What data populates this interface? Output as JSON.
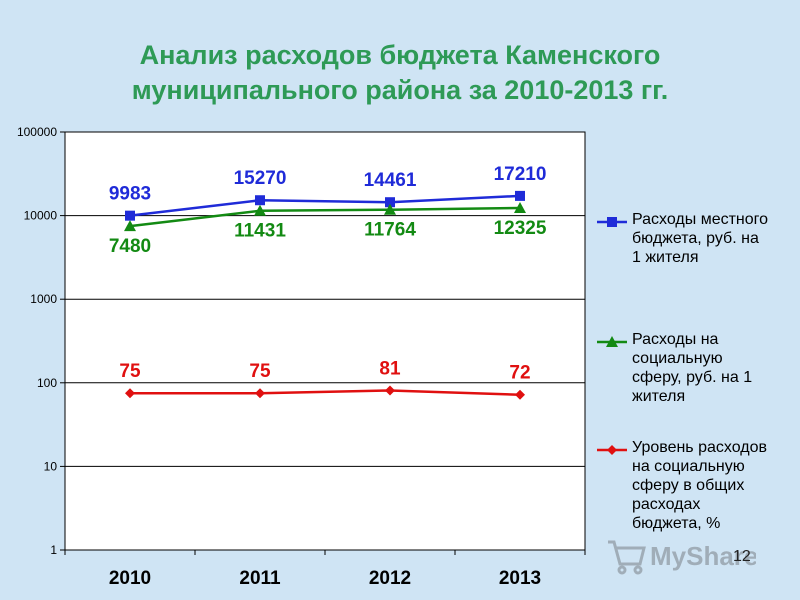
{
  "title_lines": [
    "Анализ расходов бюджета Каменского",
    "муниципального района за 2010-2013 гг."
  ],
  "page_number": "12",
  "watermark_text": "MyShared",
  "colors": {
    "background": "#cfe4f4",
    "title": "#2e9a56",
    "plot_background": "#ffffff",
    "series_blue": "#1f2bd8",
    "series_green": "#138a13",
    "series_red": "#e01010"
  },
  "chart_data": {
    "type": "line",
    "title": "",
    "xlabel": "",
    "ylabel": "",
    "y_scale": "log",
    "ylim": [
      1,
      100000
    ],
    "y_ticks": [
      "1",
      "10",
      "100",
      "1000",
      "10000",
      "100000"
    ],
    "y_tick_values": [
      1,
      10,
      100,
      1000,
      10000,
      100000
    ],
    "grid": "horizontal",
    "legend_position": "right",
    "categories": [
      "2010",
      "2011",
      "2012",
      "2013"
    ],
    "series": [
      {
        "name": "Расходы местного бюджета, руб. на 1 жителя",
        "legend_lines": [
          "Расходы местного",
          "бюджета, руб. на",
          "1 жителя"
        ],
        "values": [
          9983,
          15270,
          14461,
          17210
        ],
        "labels": [
          "9983",
          "15270",
          "14461",
          "17210"
        ],
        "color": "#1f2bd8",
        "marker": "square"
      },
      {
        "name": "Расходы на социальную сферу, руб. на 1 жителя",
        "legend_lines": [
          "Расходы на",
          "социальную",
          "сферу, руб. на 1",
          "жителя"
        ],
        "values": [
          7480,
          11431,
          11764,
          12325
        ],
        "labels": [
          "7480",
          "11431",
          "11764",
          "12325"
        ],
        "color": "#138a13",
        "marker": "triangle"
      },
      {
        "name": "Уровень расходов на социальную сферу в общих расходах бюджета, %",
        "legend_lines": [
          "Уровень расходов",
          "на социальную",
          "сферу в общих",
          "расходах",
          "бюджета, %"
        ],
        "values": [
          75,
          75,
          81,
          72
        ],
        "labels": [
          "75",
          "75",
          "81",
          "72"
        ],
        "color": "#e01010",
        "marker": "diamond"
      }
    ]
  }
}
